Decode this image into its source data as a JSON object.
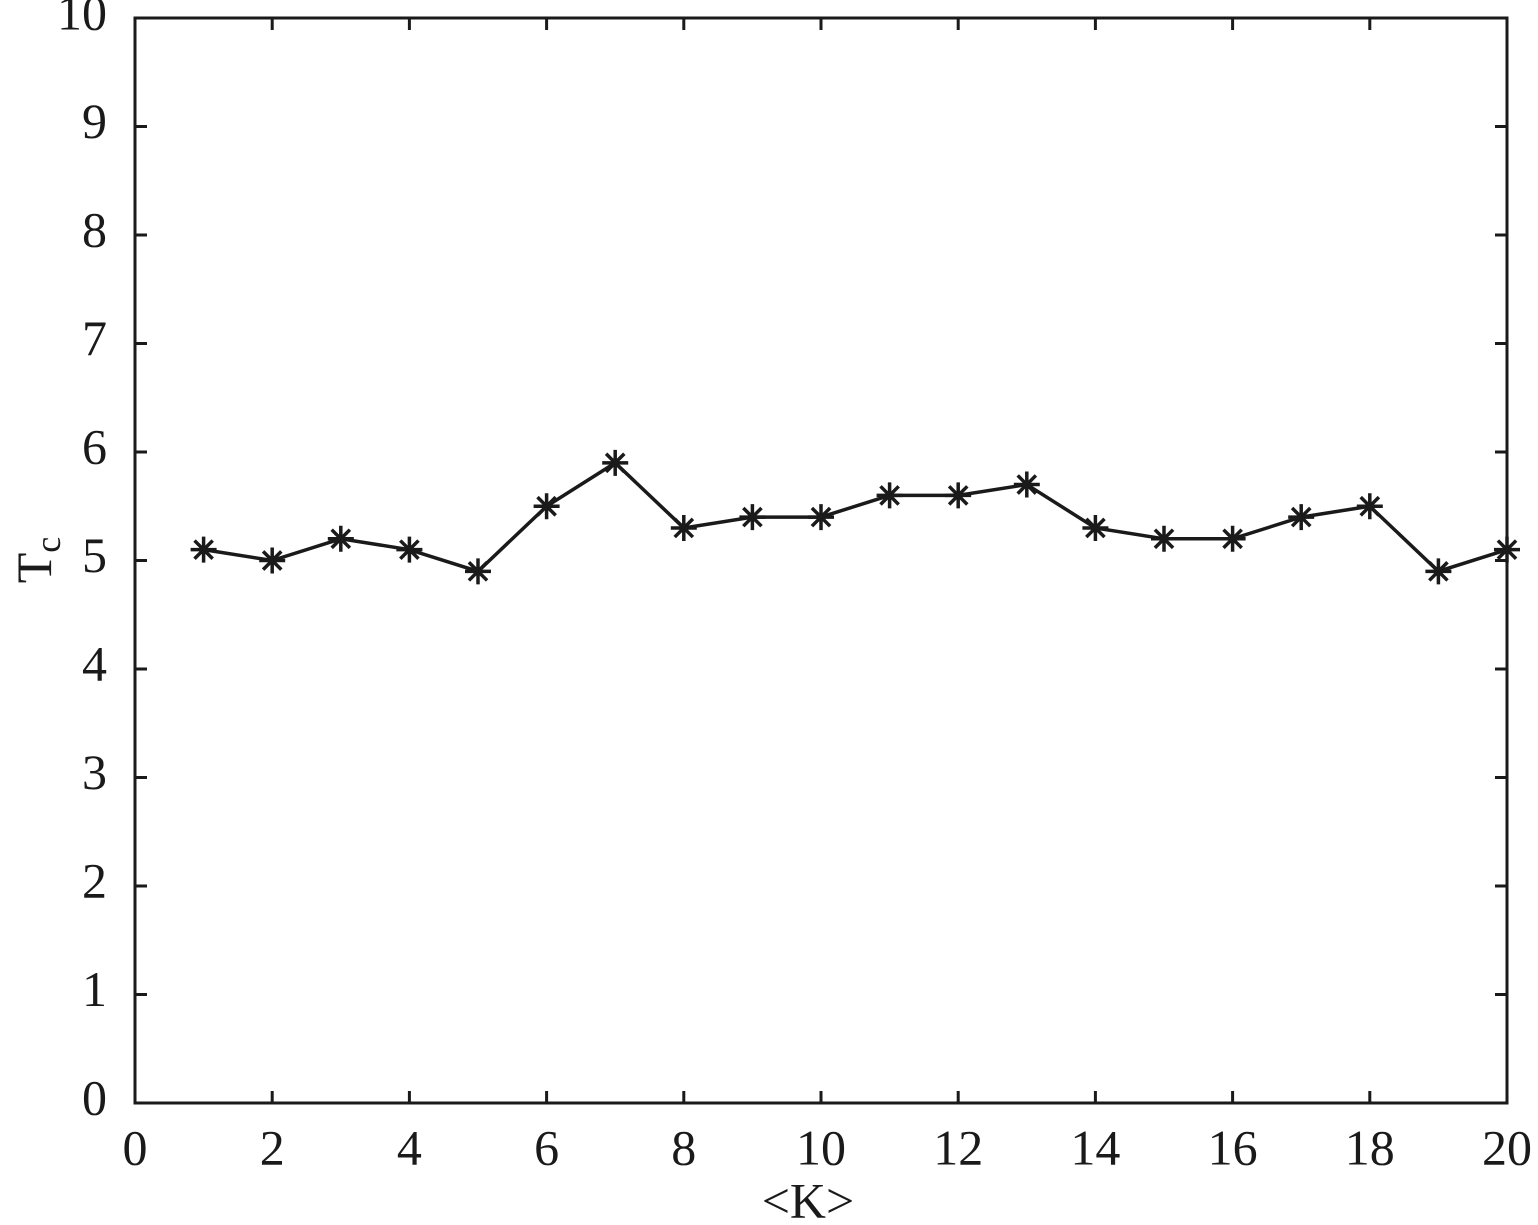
{
  "chart_data": {
    "type": "line",
    "xlabel": "<K>",
    "ylabel": "T",
    "ylabel_subscript": "c",
    "x": [
      1,
      2,
      3,
      4,
      5,
      6,
      7,
      8,
      9,
      10,
      11,
      12,
      13,
      14,
      15,
      16,
      17,
      18,
      19,
      20
    ],
    "series": [
      {
        "color": "#1a1a1a",
        "marker": "asterisk",
        "values": [
          5.1,
          5.0,
          5.2,
          5.1,
          4.9,
          5.5,
          5.9,
          5.3,
          5.4,
          5.4,
          5.6,
          5.6,
          5.7,
          5.3,
          5.2,
          5.2,
          5.4,
          5.5,
          4.9,
          5.1
        ]
      }
    ],
    "xlim": [
      0,
      20
    ],
    "xticks": [
      0,
      2,
      4,
      6,
      8,
      10,
      12,
      14,
      16,
      18,
      20
    ],
    "ylim": [
      0,
      10
    ],
    "yticks": [
      0,
      1,
      2,
      3,
      4,
      5,
      6,
      7,
      8,
      9,
      10
    ],
    "grid": false
  }
}
